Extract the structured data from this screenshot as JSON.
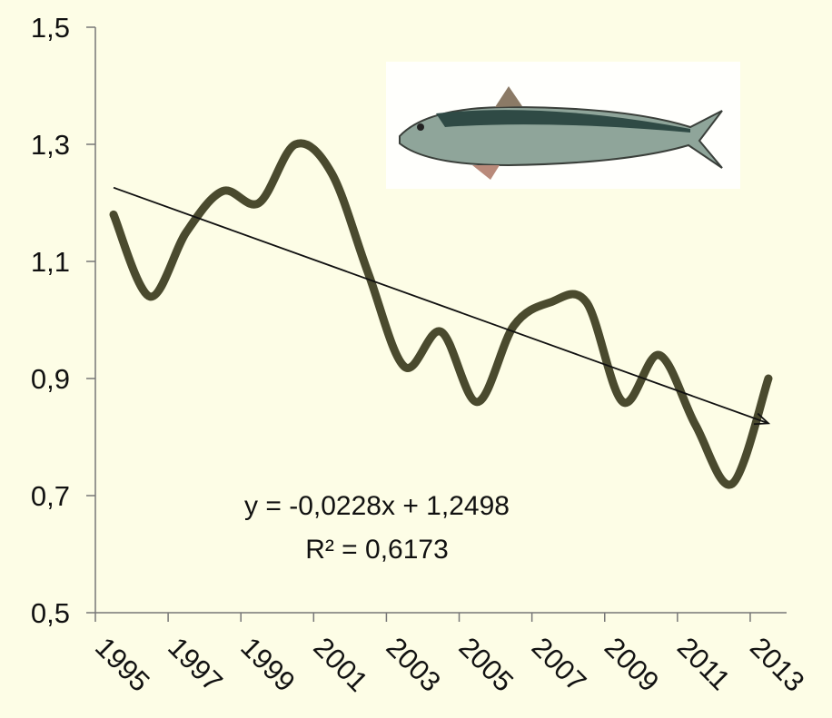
{
  "chart_data": {
    "type": "line",
    "categories": [
      "1995",
      null,
      "1997",
      null,
      "1999",
      null,
      "2001",
      null,
      "2003",
      null,
      "2005",
      null,
      "2007",
      null,
      "2009",
      null,
      "2011",
      null,
      "2013"
    ],
    "series": [
      {
        "color": "#4a4a2e",
        "values": [
          1.18,
          1.04,
          1.15,
          1.22,
          1.2,
          1.3,
          1.25,
          1.08,
          0.92,
          0.98,
          0.86,
          0.99,
          1.03,
          1.03,
          0.86,
          0.94,
          0.82,
          0.72,
          0.9
        ]
      }
    ],
    "ylim": [
      0.5,
      1.5
    ],
    "yticks": [
      {
        "value": 0.5,
        "label": "0,5"
      },
      {
        "value": 0.7,
        "label": "0,7"
      },
      {
        "value": 0.9,
        "label": "0,9"
      },
      {
        "value": 1.1,
        "label": "1,1"
      },
      {
        "value": 1.3,
        "label": "1,3"
      },
      {
        "value": 1.5,
        "label": "1,5"
      }
    ],
    "annotations": [
      "y = -0,0228x + 1,2498",
      "R² = 0,6173"
    ],
    "trendline": true
  }
}
